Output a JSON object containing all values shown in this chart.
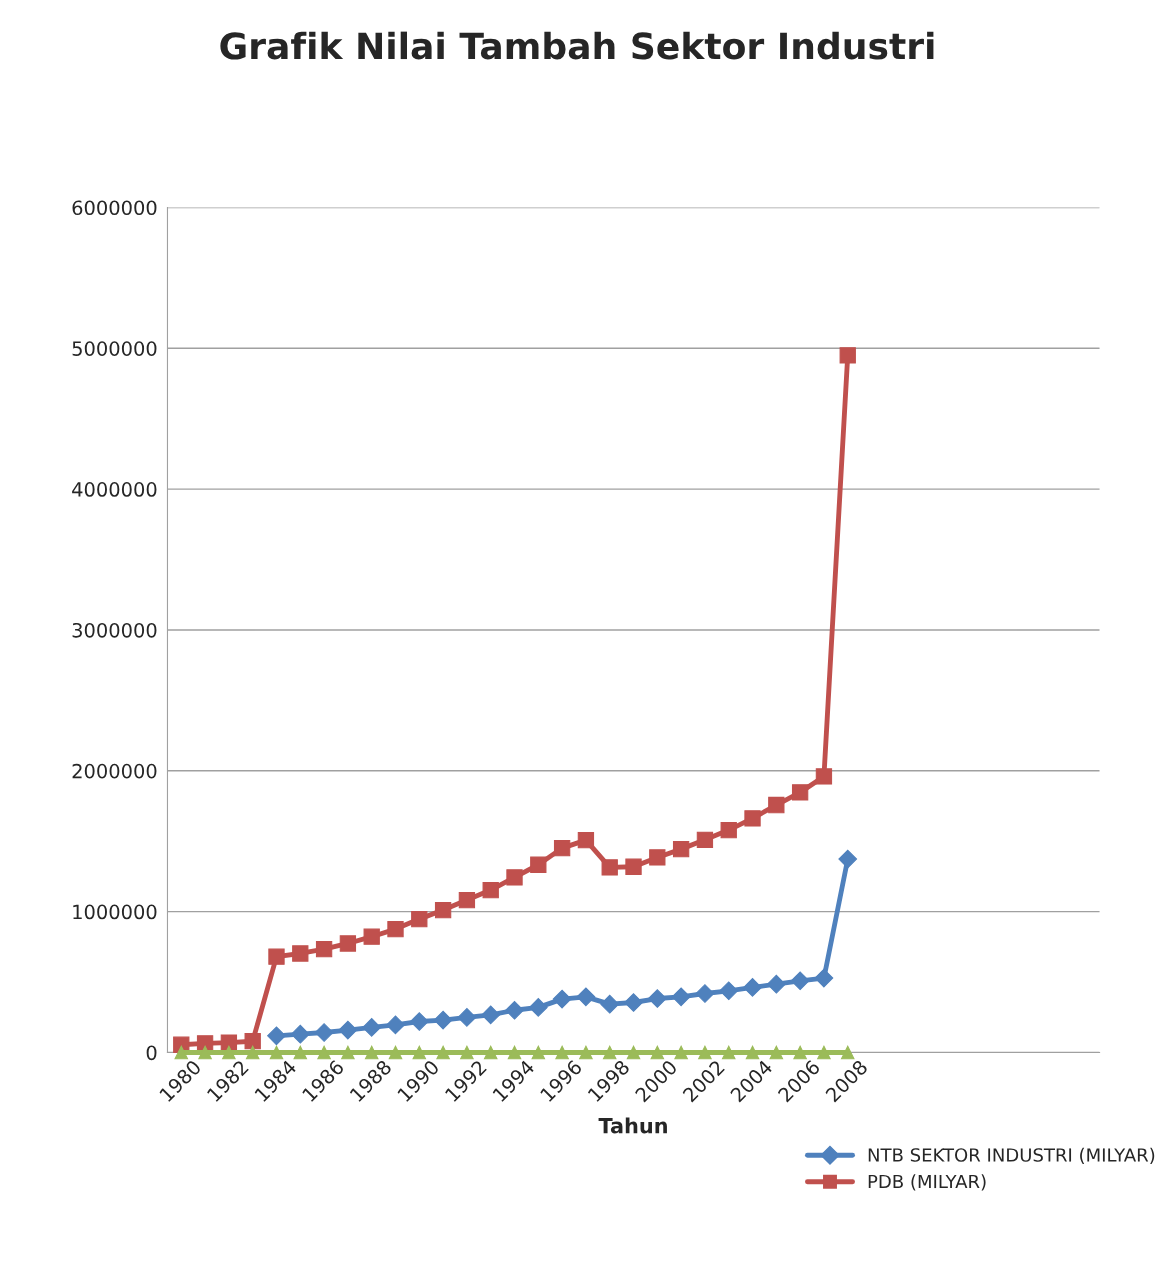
{
  "chart_data": {
    "type": "line",
    "title": "Grafik Nilai Tambah Sektor Industri",
    "xlabel": "Tahun",
    "categories": [
      "1980",
      null,
      "1982",
      null,
      "1984",
      null,
      "1986",
      null,
      "1988",
      null,
      "1990",
      null,
      "1992",
      null,
      "1994",
      null,
      "1996",
      null,
      "1998",
      null,
      "2000",
      null,
      "2002",
      null,
      "2004",
      null,
      "2006",
      null,
      "2008",
      null,
      null,
      null,
      null,
      null,
      null,
      null,
      null,
      null,
      null
    ],
    "series": [
      {
        "name": "NTB SEKTOR INDUSTRI (MILYAR)",
        "color": "#4f81bd",
        "marker": "diamond",
        "values": [
          null,
          null,
          null,
          null,
          118000,
          130000,
          142000,
          159000,
          178000,
          196000,
          220000,
          230000,
          249000,
          267000,
          300000,
          320000,
          379000,
          395000,
          343000,
          355000,
          383000,
          395000,
          419000,
          438000,
          462000,
          485000,
          509000,
          528000,
          1373000,
          null,
          null,
          null,
          null,
          null,
          null,
          null,
          null,
          null,
          null
        ]
      },
      {
        "name": "PDB (MILYAR)",
        "color": "#c0504d",
        "marker": "square",
        "values": [
          55000,
          65000,
          70000,
          80000,
          680000,
          703000,
          734000,
          774000,
          822000,
          876000,
          947000,
          1011000,
          1082000,
          1153000,
          1243000,
          1333000,
          1451000,
          1508000,
          1314000,
          1319000,
          1385000,
          1444000,
          1510000,
          1579000,
          1662000,
          1757000,
          1847000,
          1960000,
          4950000,
          null,
          null,
          null,
          null,
          null,
          null,
          null,
          null,
          null,
          null
        ]
      },
      {
        "color": "#9bbb59",
        "marker": "triangle",
        "values": [
          0,
          0,
          0,
          0,
          0,
          0,
          0,
          0,
          0,
          0,
          0,
          0,
          0,
          0,
          0,
          0,
          0,
          0,
          0,
          0,
          0,
          0,
          0,
          0,
          0,
          0,
          0,
          0,
          0,
          null,
          null,
          null,
          null,
          null,
          null,
          null,
          null,
          null,
          null
        ]
      }
    ],
    "ylim": [
      0,
      6000000
    ],
    "yticks": [
      0,
      1000000,
      2000000,
      3000000,
      4000000,
      5000000,
      6000000
    ],
    "grid": "y",
    "legend": "bottom right",
    "line_style": "solid"
  }
}
